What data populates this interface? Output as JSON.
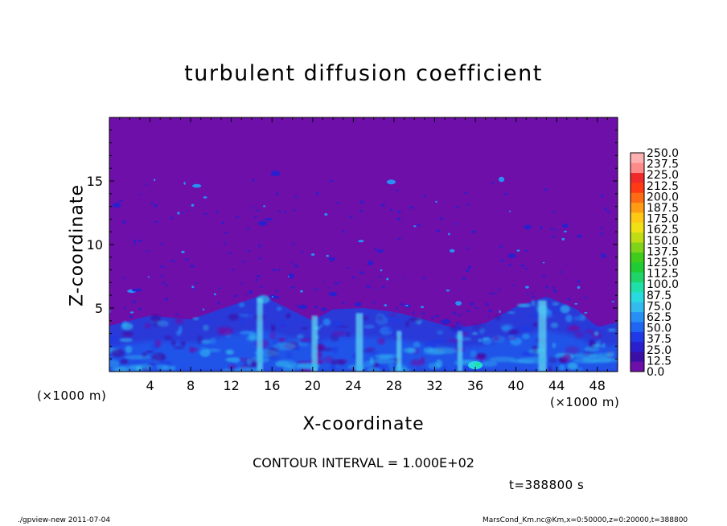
{
  "chart_data": {
    "type": "heatmap",
    "title": "turbulent diffusion coefficient",
    "xlabel": "X-coordinate",
    "ylabel": "Z-coordinate",
    "x_unit": "(×1000 m)",
    "xlim": [
      0,
      50
    ],
    "ylim": [
      0,
      20
    ],
    "x_ticks": [
      4,
      8,
      12,
      16,
      20,
      24,
      28,
      32,
      36,
      40,
      44,
      48
    ],
    "y_ticks": [
      5,
      10,
      15
    ],
    "colorbar_levels": [
      "0.0",
      "12.5",
      "25.0",
      "37.5",
      "50.0",
      "62.5",
      "75.0",
      "87.5",
      "100.0",
      "112.5",
      "125.0",
      "137.5",
      "150.0",
      "162.5",
      "175.0",
      "187.5",
      "200.0",
      "212.5",
      "225.0",
      "237.5",
      "250.0"
    ],
    "colorbar_colors": [
      "#6d0fa8",
      "#3b0fa6",
      "#2a1fcf",
      "#1f3ae6",
      "#1f66f2",
      "#2790f5",
      "#33bbf0",
      "#28d9e0",
      "#1fe0a8",
      "#1fd468",
      "#1fcc33",
      "#3fcc1a",
      "#7fd41a",
      "#bfdc14",
      "#f0e014",
      "#ffc814",
      "#ff9c14",
      "#ff6a14",
      "#ff3a14",
      "#f02a2a",
      "#ff8a8a",
      "#ffb0b0"
    ],
    "background_color": "#6d0fa8",
    "boundary_layer_tops": [
      [
        0,
        3.6
      ],
      [
        4,
        4.4
      ],
      [
        8,
        4.1
      ],
      [
        12,
        5.2
      ],
      [
        15,
        6.0
      ],
      [
        18,
        4.8
      ],
      [
        20,
        4.0
      ],
      [
        22,
        4.9
      ],
      [
        25,
        5.0
      ],
      [
        28,
        4.7
      ],
      [
        31,
        4.1
      ],
      [
        34,
        3.4
      ],
      [
        37,
        3.8
      ],
      [
        40,
        5.1
      ],
      [
        43,
        5.9
      ],
      [
        46,
        4.9
      ],
      [
        48,
        3.5
      ],
      [
        50,
        3.9
      ]
    ],
    "updrafts": [
      [
        14.8,
        0.6,
        5.8
      ],
      [
        20.2,
        0.6,
        4.4
      ],
      [
        24.6,
        0.7,
        4.6
      ],
      [
        34.5,
        0.5,
        3.2
      ],
      [
        42.6,
        0.8,
        5.6
      ],
      [
        28.5,
        0.5,
        3.2
      ]
    ],
    "hotspot": {
      "x": 36.0,
      "z": 0.5,
      "value": 87.5
    },
    "contour_interval": "CONTOUR INTERVAL = 1.000E+02",
    "time_label": "t=388800 s"
  },
  "footer": {
    "left": "./gpview-new   2011-07-04",
    "right": "MarsCond_Km.nc@Km,x=0:50000,z=0:20000,t=388800"
  }
}
